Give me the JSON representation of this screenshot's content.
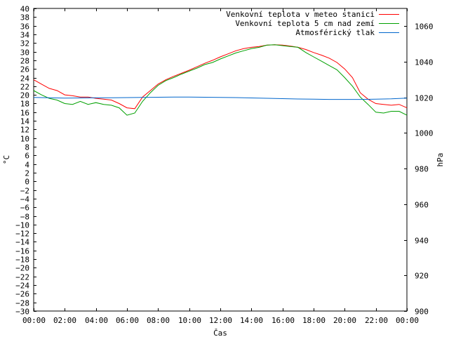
{
  "chart_data": {
    "type": "line",
    "xlabel": "Čas",
    "ylabel": "°C",
    "y2label": "hPa",
    "xlim": [
      0,
      24
    ],
    "ylim": [
      -30,
      40
    ],
    "y2lim": [
      900,
      1070
    ],
    "grid": false,
    "legend_position": "top-right",
    "x_tick_labels": [
      "00:00",
      "02:00",
      "04:00",
      "06:00",
      "08:00",
      "10:00",
      "12:00",
      "14:00",
      "16:00",
      "18:00",
      "20:00",
      "22:00",
      "00:00"
    ],
    "x_ticks": [
      0,
      2,
      4,
      6,
      8,
      10,
      12,
      14,
      16,
      18,
      20,
      22,
      24
    ],
    "y_ticks": [
      -30,
      -28,
      -26,
      -24,
      -22,
      -20,
      -18,
      -16,
      -14,
      -12,
      -10,
      -8,
      -6,
      -4,
      -2,
      0,
      2,
      4,
      6,
      8,
      10,
      12,
      14,
      16,
      18,
      20,
      22,
      24,
      26,
      28,
      30,
      32,
      34,
      36,
      38,
      40
    ],
    "y2_ticks": [
      900,
      920,
      940,
      960,
      980,
      1000,
      1020,
      1040,
      1060
    ],
    "series": [
      {
        "name": "Venkovní teplota v meteo stanici",
        "color": "#ff0000",
        "axis": "left",
        "x": [
          0,
          0.5,
          1,
          1.5,
          2,
          2.5,
          3,
          3.5,
          4,
          4.5,
          5,
          5.5,
          6,
          6.5,
          7,
          7.5,
          8,
          8.5,
          9,
          9.5,
          10,
          10.5,
          11,
          11.5,
          12,
          12.5,
          13,
          13.5,
          14,
          14.5,
          15,
          15.5,
          16,
          16.5,
          17,
          17.5,
          18,
          18.5,
          19,
          19.5,
          20,
          20.5,
          21,
          21.5,
          22,
          22.5,
          23,
          23.5,
          24
        ],
        "values": [
          23.5,
          22.5,
          21.5,
          21.0,
          20.0,
          19.8,
          19.5,
          19.5,
          19.2,
          19.0,
          18.8,
          18.0,
          17.0,
          16.8,
          19.5,
          21.0,
          22.5,
          23.5,
          24.3,
          25.0,
          25.7,
          26.5,
          27.3,
          28.0,
          28.8,
          29.5,
          30.2,
          30.7,
          31.0,
          31.2,
          31.5,
          31.6,
          31.5,
          31.3,
          31.0,
          30.5,
          29.8,
          29.2,
          28.5,
          27.5,
          26.0,
          24.0,
          20.5,
          19.0,
          18.0,
          17.8,
          17.6,
          17.8,
          17.0
        ]
      },
      {
        "name": "Venkovní teplota 5 cm nad zemí",
        "color": "#00a000",
        "axis": "left",
        "x": [
          0,
          0.5,
          1,
          1.5,
          2,
          2.5,
          3,
          3.5,
          4,
          4.5,
          5,
          5.5,
          6,
          6.5,
          7,
          7.5,
          8,
          8.5,
          9,
          9.5,
          10,
          10.5,
          11,
          11.5,
          12,
          12.5,
          13,
          13.5,
          14,
          14.5,
          15,
          15.5,
          16,
          16.5,
          17,
          17.5,
          18,
          18.5,
          19,
          19.5,
          20,
          20.5,
          21,
          21.5,
          22,
          22.5,
          23,
          23.5,
          24
        ],
        "values": [
          21.0,
          20.0,
          19.2,
          18.8,
          18.0,
          17.8,
          18.5,
          17.8,
          18.2,
          17.8,
          17.6,
          17.0,
          15.3,
          15.8,
          18.5,
          20.5,
          22.2,
          23.3,
          24.0,
          24.8,
          25.5,
          26.2,
          27.0,
          27.5,
          28.3,
          29.0,
          29.7,
          30.2,
          30.7,
          31.0,
          31.5,
          31.6,
          31.4,
          31.2,
          31.0,
          29.8,
          28.8,
          27.8,
          26.8,
          25.8,
          24.0,
          22.0,
          19.5,
          17.8,
          16.0,
          15.8,
          16.2,
          16.2,
          15.3
        ]
      },
      {
        "name": "Atmosférický tlak",
        "color": "#0066cc",
        "axis": "right",
        "x": [
          0,
          1,
          2,
          3,
          4,
          5,
          6,
          7,
          8,
          9,
          10,
          11,
          12,
          13,
          14,
          15,
          16,
          17,
          18,
          19,
          20,
          21,
          22,
          23,
          24
        ],
        "values": [
          1020.0,
          1019.8,
          1019.6,
          1019.7,
          1019.8,
          1019.8,
          1019.9,
          1020.0,
          1020.1,
          1020.2,
          1020.2,
          1020.1,
          1020.0,
          1019.9,
          1019.7,
          1019.5,
          1019.3,
          1019.1,
          1019.0,
          1018.9,
          1018.9,
          1018.9,
          1019.0,
          1019.2,
          1019.6
        ]
      }
    ]
  }
}
